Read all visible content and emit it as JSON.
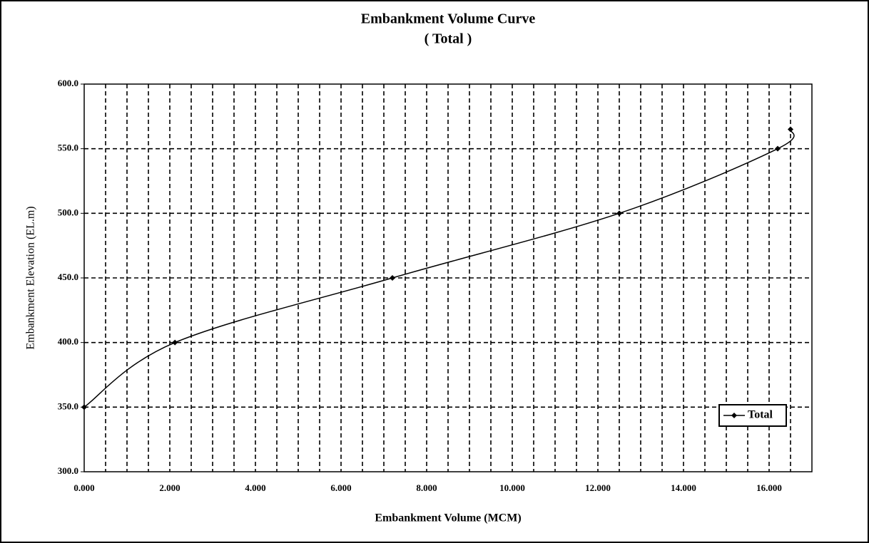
{
  "chart_data": {
    "type": "line",
    "title": "Embankment Volume Curve",
    "subtitle": "( Total )",
    "x_label": "Embankment Volume (MCM)",
    "y_label": "Embankment Elevation (EL.m)",
    "x": [
      0,
      2.12,
      7.2,
      12.5,
      16.2,
      16.5
    ],
    "series": [
      {
        "name": "Total",
        "color": "#000000",
        "values": [
          350,
          400,
          450,
          500,
          550,
          565
        ]
      }
    ],
    "xlim": [
      0,
      17
    ],
    "ylim": [
      300,
      600
    ],
    "xticks": [
      {
        "value": 0,
        "label": "0.000"
      },
      {
        "value": 2,
        "label": "2.000"
      },
      {
        "value": 4,
        "label": "4.000"
      },
      {
        "value": 6,
        "label": "6.000"
      },
      {
        "value": 8,
        "label": "8.000"
      },
      {
        "value": 10,
        "label": "10.000"
      },
      {
        "value": 12,
        "label": "12.000"
      },
      {
        "value": 14,
        "label": "14.000"
      },
      {
        "value": 16,
        "label": "16.000"
      }
    ],
    "xminor_grid": [
      0.5,
      1,
      1.5,
      2.5,
      3,
      3.5,
      4.5,
      5,
      5.5,
      6.5,
      7,
      7.5,
      8.5,
      9,
      9.5,
      10.5,
      11,
      11.5,
      12.5,
      13,
      13.5,
      14.5,
      15,
      15.5,
      16.5
    ],
    "yticks": [
      {
        "value": 300,
        "label": "300.0"
      },
      {
        "value": 350,
        "label": "350.0"
      },
      {
        "value": 400,
        "label": "400.0"
      },
      {
        "value": 450,
        "label": "450.0"
      },
      {
        "value": 500,
        "label": "500.0"
      },
      {
        "value": 550,
        "label": "550.0"
      },
      {
        "value": 600,
        "label": "600.0"
      }
    ],
    "grid": true,
    "legend": "lower right"
  }
}
